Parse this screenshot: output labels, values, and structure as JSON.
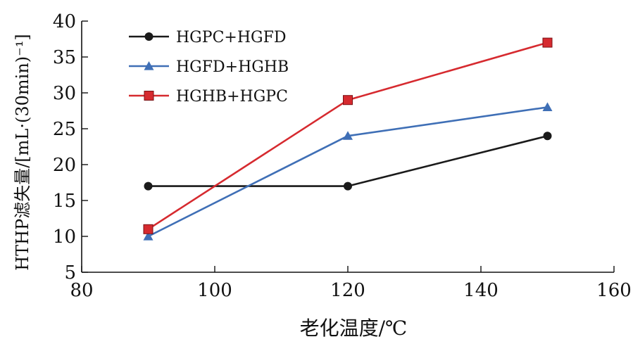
{
  "chart_data": {
    "type": "line",
    "title": "",
    "xlabel": "老化温度/℃",
    "ylabel": "HTHP滤失量/[mL·(30min)⁻¹]",
    "xlim": [
      80,
      160
    ],
    "ylim": [
      5,
      40
    ],
    "xticks": [
      80,
      100,
      120,
      140,
      160
    ],
    "yticks": [
      5,
      10,
      15,
      20,
      25,
      30,
      35,
      40
    ],
    "grid": false,
    "legend_position": "top-left",
    "series": [
      {
        "name": "HGPC+HGFD",
        "marker": "circle",
        "color": "#1a1a1a",
        "points": [
          {
            "x": 90,
            "y": 17
          },
          {
            "x": 120,
            "y": 17
          },
          {
            "x": 150,
            "y": 24
          }
        ]
      },
      {
        "name": "HGFD+HGHB",
        "marker": "triangle",
        "color": "#3f6fb6",
        "points": [
          {
            "x": 90,
            "y": 10
          },
          {
            "x": 120,
            "y": 24
          },
          {
            "x": 150,
            "y": 28
          }
        ]
      },
      {
        "name": "HGHB+HGPC",
        "marker": "square",
        "color": "#d62a2f",
        "points": [
          {
            "x": 90,
            "y": 11
          },
          {
            "x": 120,
            "y": 29
          },
          {
            "x": 150,
            "y": 37
          }
        ]
      }
    ]
  }
}
